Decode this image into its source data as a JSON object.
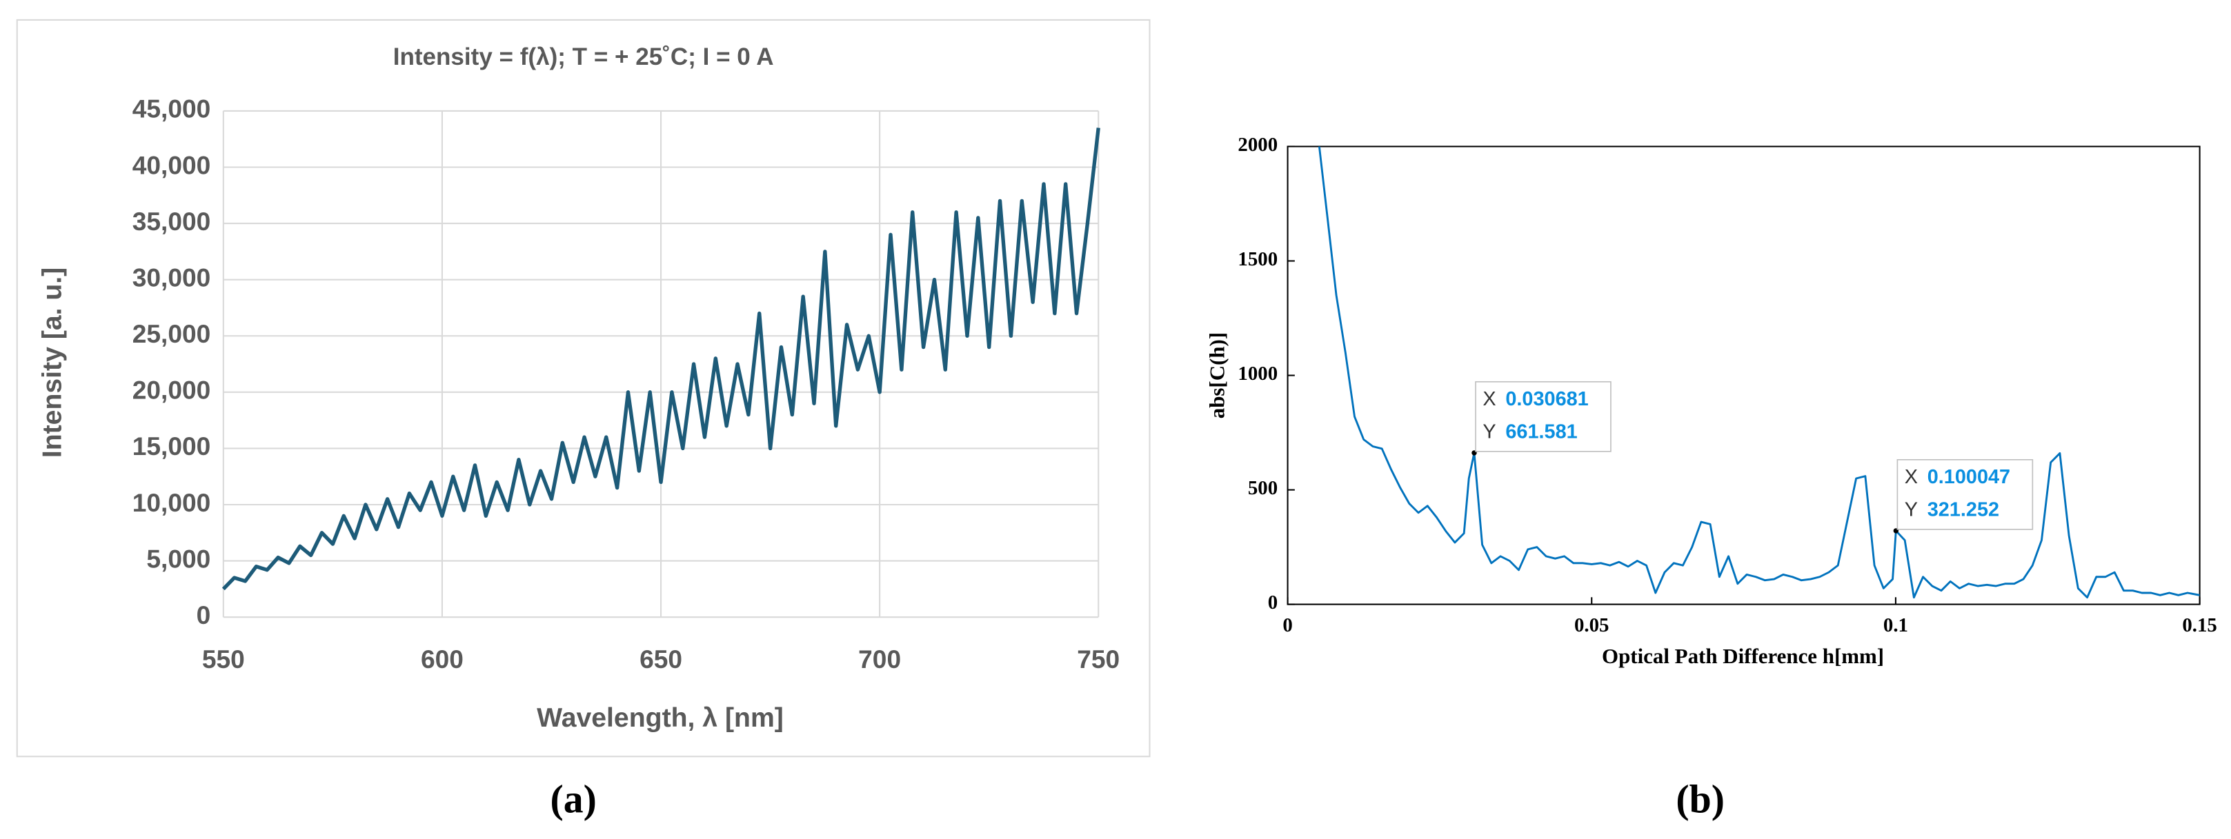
{
  "chart_data": [
    {
      "type": "line",
      "panel": "(a)",
      "title": "Intensity = f(λ); T = + 25˚C; I = 0 A",
      "x_label": "Wavelength, λ [nm]",
      "y_label": "Intensity [a. u.]",
      "x": [
        550,
        552.5,
        555,
        557.5,
        560,
        562.5,
        565,
        567.5,
        570,
        572.5,
        575,
        577.5,
        580,
        582.5,
        585,
        587.5,
        590,
        592.5,
        595,
        597.5,
        600,
        602.5,
        605,
        607.5,
        610,
        612.5,
        615,
        617.5,
        620,
        622.5,
        625,
        627.5,
        630,
        632.5,
        635,
        637.5,
        640,
        642.5,
        645,
        647.5,
        650,
        652.5,
        655,
        657.5,
        660,
        662.5,
        665,
        667.5,
        670,
        672.5,
        675,
        677.5,
        680,
        682.5,
        685,
        687.5,
        690,
        692.5,
        695,
        697.5,
        700,
        702.5,
        705,
        707.5,
        710,
        712.5,
        715,
        717.5,
        720,
        722.5,
        725,
        727.5,
        730,
        732.5,
        735,
        737.5,
        740,
        742.5,
        745,
        747.5,
        750
      ],
      "series": [
        {
          "name": "Intensity",
          "color": "#1d5b79",
          "values": [
            2500,
            3500,
            3200,
            4500,
            4200,
            5300,
            4800,
            6300,
            5500,
            7500,
            6500,
            9000,
            7000,
            10000,
            7800,
            10500,
            8000,
            11000,
            9500,
            12000,
            9000,
            12500,
            9500,
            13500,
            9000,
            12000,
            9500,
            14000,
            10000,
            13000,
            10500,
            15500,
            12000,
            16000,
            12500,
            16000,
            11500,
            20000,
            13000,
            20000,
            12000,
            20000,
            15000,
            22500,
            16000,
            23000,
            17000,
            22500,
            18000,
            27000,
            15000,
            24000,
            18000,
            28500,
            19000,
            32500,
            17000,
            26000,
            22000,
            25000,
            20000,
            34000,
            22000,
            36000,
            24000,
            30000,
            22000,
            36000,
            25000,
            35500,
            24000,
            37000,
            25000,
            37000,
            28000,
            38500,
            27000,
            38500,
            27000,
            35000,
            43500
          ]
        }
      ],
      "xlim": [
        550,
        750
      ],
      "xticks": [
        550,
        600,
        650,
        700,
        750
      ],
      "ylim": [
        0,
        45000
      ],
      "yticks": [
        0,
        {
          "value": 5000,
          "label": "5,000"
        },
        {
          "value": 10000,
          "label": "10,000"
        },
        {
          "value": 15000,
          "label": "15,000"
        },
        {
          "value": 20000,
          "label": "20,000"
        },
        {
          "value": 25000,
          "label": "25,000"
        },
        {
          "value": 30000,
          "label": "30,000"
        },
        {
          "value": 35000,
          "label": "35,000"
        },
        {
          "value": 40000,
          "label": "40,000"
        },
        {
          "value": 45000,
          "label": "45,000"
        }
      ],
      "grid": true
    },
    {
      "type": "line",
      "panel": "(b)",
      "x_label": "Optical Path Difference h[mm]",
      "y_label": "abs[C(h)]",
      "x": [
        0.0052,
        0.0065,
        0.008,
        0.0095,
        0.011,
        0.0125,
        0.014,
        0.0155,
        0.017,
        0.0185,
        0.02,
        0.0215,
        0.023,
        0.0245,
        0.026,
        0.0275,
        0.029,
        0.0298,
        0.030681,
        0.032,
        0.0335,
        0.035,
        0.0365,
        0.038,
        0.0395,
        0.041,
        0.0425,
        0.044,
        0.0455,
        0.047,
        0.0485,
        0.05,
        0.0515,
        0.053,
        0.0545,
        0.056,
        0.0575,
        0.059,
        0.0605,
        0.062,
        0.0635,
        0.065,
        0.0665,
        0.068,
        0.0695,
        0.071,
        0.0725,
        0.074,
        0.0755,
        0.077,
        0.0785,
        0.08,
        0.0815,
        0.083,
        0.0845,
        0.086,
        0.0875,
        0.089,
        0.0905,
        0.092,
        0.0935,
        0.095,
        0.0965,
        0.098,
        0.0995,
        0.100047,
        0.1015,
        0.103,
        0.1045,
        0.106,
        0.1075,
        0.109,
        0.1105,
        0.112,
        0.1135,
        0.115,
        0.1165,
        0.118,
        0.1195,
        0.121,
        0.1225,
        0.124,
        0.1255,
        0.127,
        0.1285,
        0.13,
        0.1315,
        0.133,
        0.1345,
        0.136,
        0.1375,
        0.139,
        0.1405,
        0.142,
        0.1435,
        0.145,
        0.1465,
        0.148,
        0.15
      ],
      "series": [
        {
          "name": "abs[C(h)]",
          "color": "#0072bd",
          "values": [
            2000,
            1700,
            1350,
            1100,
            820,
            720,
            690,
            680,
            590,
            510,
            440,
            400,
            430,
            380,
            320,
            270,
            310,
            550,
            661.581,
            260,
            180,
            210,
            190,
            150,
            240,
            250,
            210,
            200,
            210,
            180,
            180,
            175,
            180,
            170,
            185,
            165,
            190,
            170,
            50,
            140,
            180,
            170,
            250,
            360,
            350,
            120,
            210,
            90,
            130,
            120,
            105,
            110,
            130,
            120,
            105,
            110,
            120,
            140,
            170,
            360,
            550,
            560,
            170,
            70,
            110,
            321.252,
            280,
            30,
            120,
            80,
            60,
            100,
            70,
            90,
            80,
            85,
            80,
            90,
            90,
            110,
            170,
            280,
            620,
            660,
            300,
            70,
            30,
            120,
            120,
            140,
            60,
            60,
            50,
            50,
            40,
            50,
            40,
            50,
            40
          ]
        }
      ],
      "xlim": [
        0,
        0.15
      ],
      "xticks": [
        0,
        0.05,
        0.1,
        0.15
      ],
      "ylim": [
        0,
        2000
      ],
      "yticks": [
        0,
        500,
        1000,
        1500,
        2000
      ],
      "grid": false,
      "datatip_labels": [
        "X",
        "Y"
      ],
      "datatips": [
        {
          "x": 0.030681,
          "y": 661.581
        },
        {
          "x": 0.100047,
          "y": 321.252
        }
      ]
    }
  ]
}
